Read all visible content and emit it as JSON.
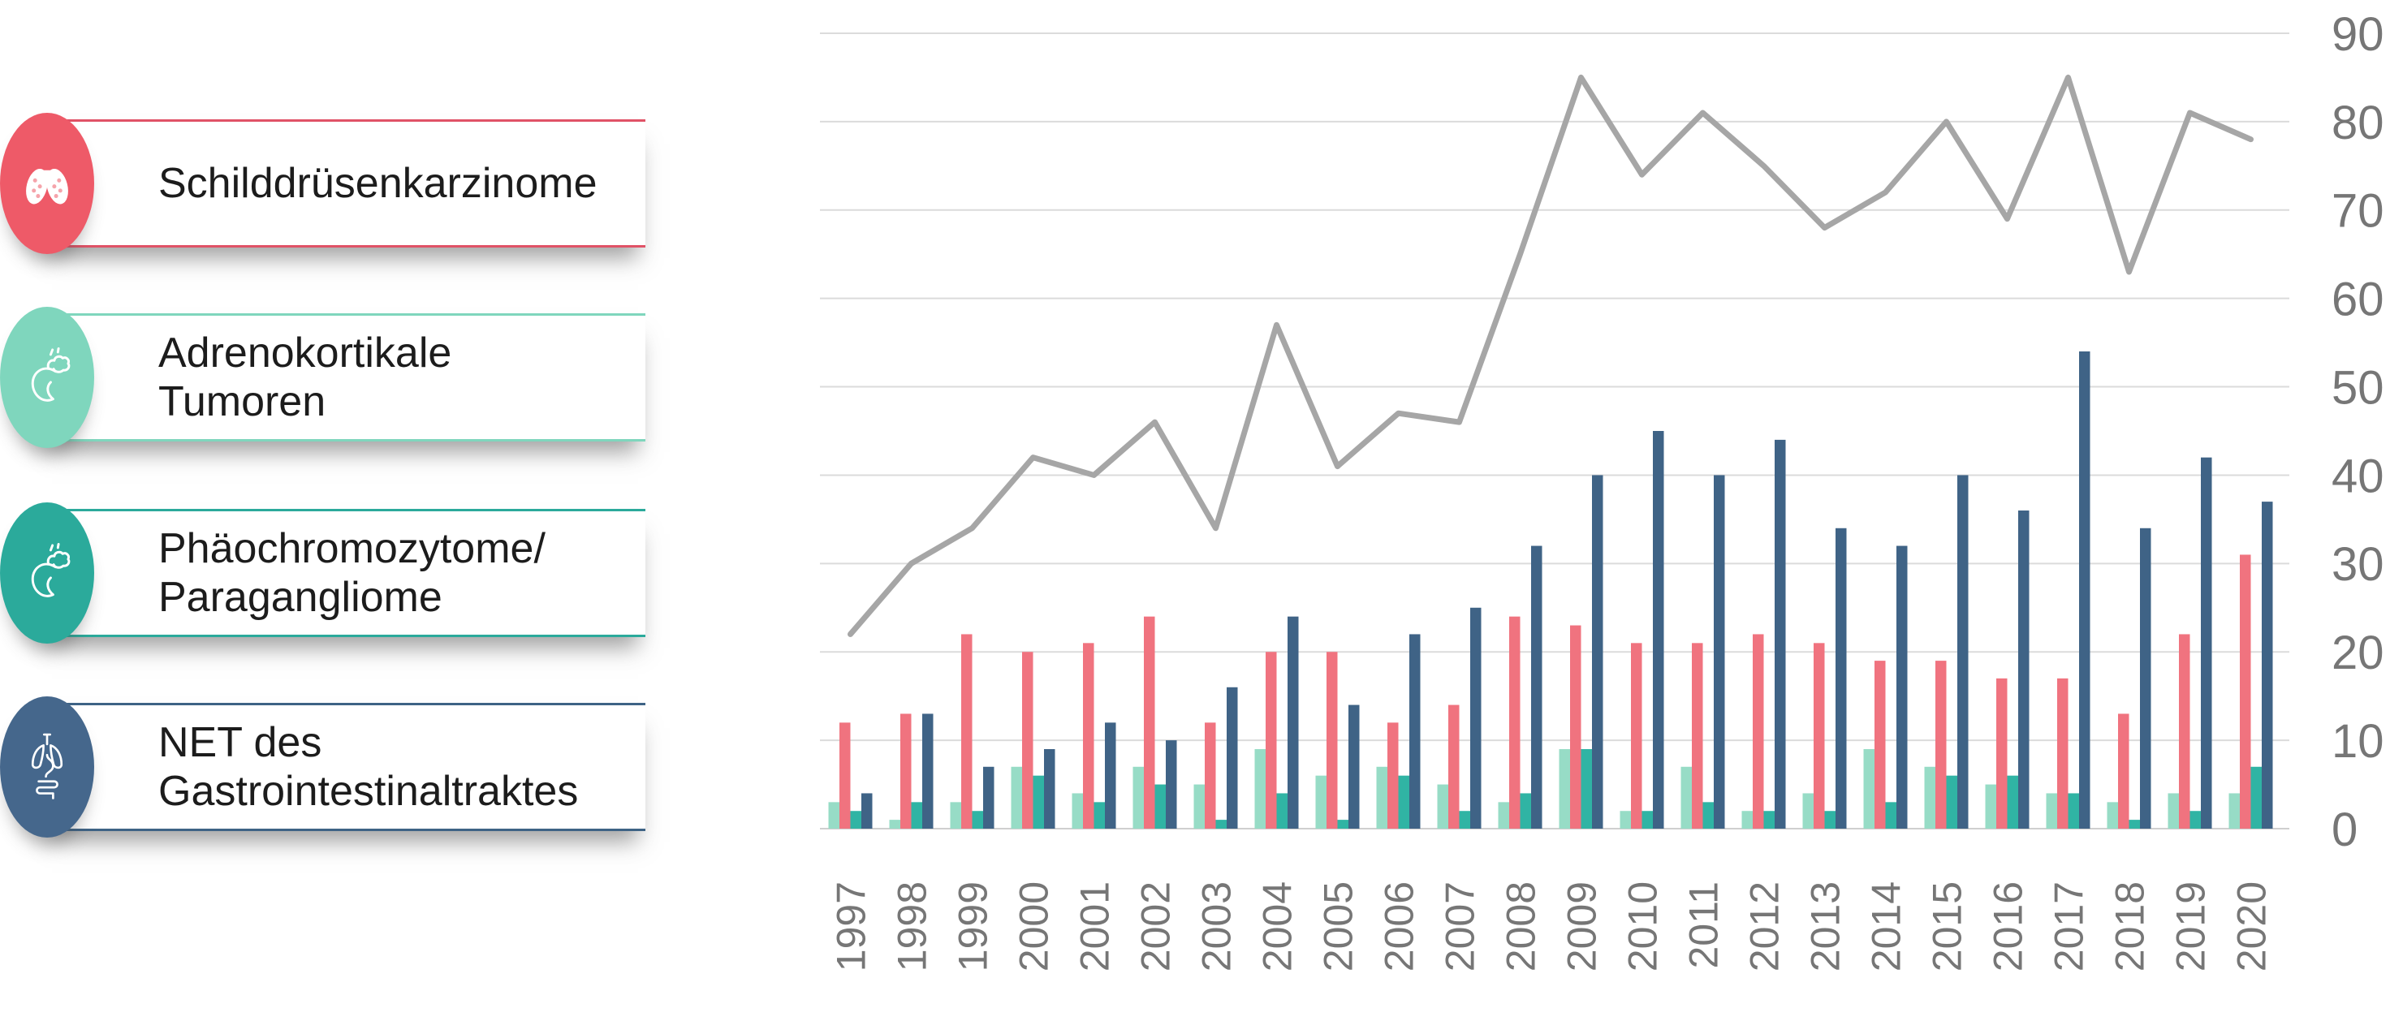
{
  "legend": {
    "items": [
      {
        "label_lines": [
          "Schilddrüsenkarzinome"
        ],
        "icon": "thyroid-icon",
        "icon_bg": "#ee5a68",
        "accent": "#e05266"
      },
      {
        "label_lines": [
          "Adrenokortikale",
          "Tumoren"
        ],
        "icon": "adrenal-gland-icon",
        "icon_bg": "#7fd6bd",
        "accent": "#7fd6bd"
      },
      {
        "label_lines": [
          "Phäochromozytome/",
          "Paragangliome"
        ],
        "icon": "adrenal-gland-icon",
        "icon_bg": "#2baa9b",
        "accent": "#2baa9b"
      },
      {
        "label_lines": [
          "NET des",
          "Gastrointestinaltraktes"
        ],
        "icon": "lungs-gi-tract-icon",
        "icon_bg": "#45678c",
        "accent": "#3e6385"
      }
    ]
  },
  "chart_data": {
    "type": "bar+line",
    "title": "",
    "xlabel": "",
    "ylabel": "",
    "categories": [
      "1997",
      "1998",
      "1999",
      "2000",
      "2001",
      "2002",
      "2003",
      "2004",
      "2005",
      "2006",
      "2007",
      "2008",
      "2009",
      "2010",
      "2011",
      "2012",
      "2013",
      "2014",
      "2015",
      "2016",
      "2017",
      "2018",
      "2019",
      "2020"
    ],
    "series": [
      {
        "name": "Schilddrüsenkarzinome",
        "type": "bar",
        "color": "#f0737f",
        "values": [
          12,
          13,
          22,
          20,
          21,
          24,
          12,
          20,
          20,
          12,
          14,
          24,
          23,
          21,
          21,
          22,
          21,
          19,
          19,
          17,
          17,
          13,
          22,
          31
        ]
      },
      {
        "name": "Adrenokortikale Tumoren",
        "type": "bar",
        "color": "#97dcc6",
        "values": [
          3,
          1,
          3,
          7,
          4,
          7,
          5,
          9,
          6,
          7,
          5,
          3,
          9,
          2,
          7,
          2,
          4,
          9,
          7,
          5,
          4,
          3,
          4,
          4
        ]
      },
      {
        "name": "Phäochromozytome/Paragangliome",
        "type": "bar",
        "color": "#30b4a4",
        "values": [
          2,
          3,
          2,
          6,
          3,
          5,
          1,
          4,
          1,
          6,
          2,
          4,
          9,
          2,
          3,
          2,
          2,
          3,
          6,
          6,
          4,
          1,
          2,
          7
        ]
      },
      {
        "name": "NET des Gastrointestinaltraktes",
        "type": "bar",
        "color": "#3f6386",
        "values": [
          4,
          13,
          7,
          9,
          12,
          10,
          16,
          24,
          14,
          22,
          25,
          32,
          40,
          45,
          40,
          44,
          34,
          32,
          40,
          36,
          54,
          34,
          42,
          37
        ]
      },
      {
        "name": "",
        "type": "line",
        "color": "#a6a6a6",
        "values": [
          22,
          30,
          34,
          42,
          40,
          46,
          34,
          57,
          41,
          47,
          46,
          65,
          85,
          74,
          81,
          75,
          68,
          72,
          80,
          69,
          85,
          63,
          81,
          78
        ]
      }
    ],
    "bar_draw_order": [
      1,
      0,
      2,
      3
    ],
    "ylim": [
      0,
      90
    ],
    "y_ticks": [
      0,
      10,
      20,
      30,
      40,
      50,
      60,
      70,
      80,
      90
    ],
    "y_axis_side": "right",
    "grid": "horizontal",
    "x_label_rotation": -90,
    "legend_position": "left"
  }
}
